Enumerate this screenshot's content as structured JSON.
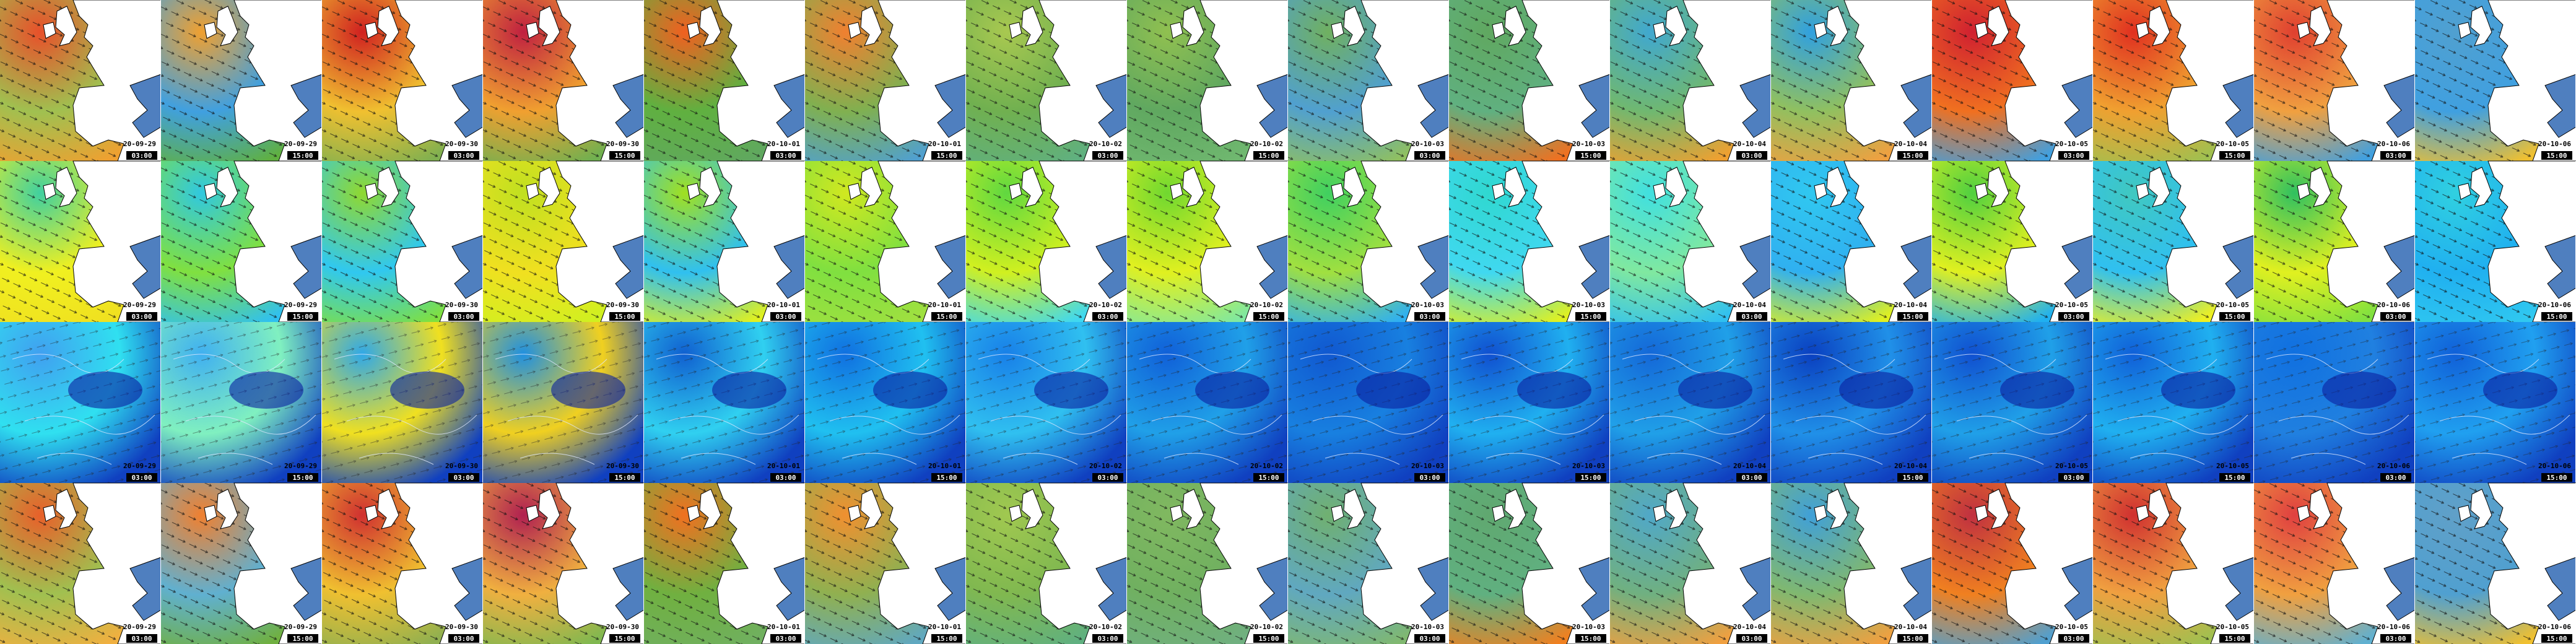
{
  "columns": [
    {
      "date": "20-09-29",
      "time": "03:00"
    },
    {
      "date": "20-09-29",
      "time": "15:00"
    },
    {
      "date": "20-09-30",
      "time": "03:00"
    },
    {
      "date": "20-09-30",
      "time": "15:00"
    },
    {
      "date": "20-10-01",
      "time": "03:00"
    },
    {
      "date": "20-10-01",
      "time": "15:00"
    },
    {
      "date": "20-10-02",
      "time": "03:00"
    },
    {
      "date": "20-10-02",
      "time": "15:00"
    },
    {
      "date": "20-10-03",
      "time": "03:00"
    },
    {
      "date": "20-10-03",
      "time": "15:00"
    },
    {
      "date": "20-10-04",
      "time": "03:00"
    },
    {
      "date": "20-10-04",
      "time": "15:00"
    },
    {
      "date": "20-10-05",
      "time": "03:00"
    },
    {
      "date": "20-10-05",
      "time": "15:00"
    },
    {
      "date": "20-10-06",
      "time": "03:00"
    },
    {
      "date": "20-10-06",
      "time": "15:00"
    }
  ]
}
